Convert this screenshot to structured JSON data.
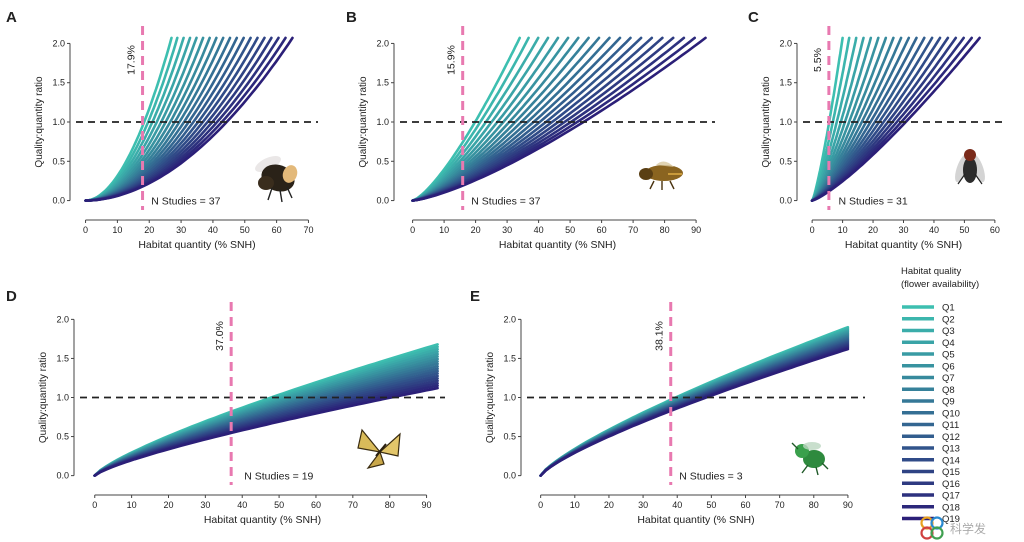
{
  "chart_data": [
    {
      "type": "line",
      "panel_letter": "A",
      "title": "",
      "xlabel": "Habitat quantity (% SNH)",
      "ylabel": "Quality:quantity ratio",
      "xlim": [
        -3,
        73
      ],
      "ylim": [
        -0.12,
        2.12
      ],
      "xticks": [
        0,
        10,
        20,
        30,
        40,
        50,
        60,
        70
      ],
      "yticks": [
        0.0,
        0.5,
        1.0,
        1.5,
        2.0
      ],
      "ytick_labels": [
        "0.0",
        "0.5",
        "1.0",
        "1.5",
        "2.0"
      ],
      "threshold_x": 17.9,
      "threshold_label": "17.9%",
      "reference_y": 1.0,
      "n_studies_label": "N Studies = 37",
      "annotation_at": [
        20,
        0.0
      ],
      "x_end_min": 27,
      "x_end_max": 65,
      "curvature": 1.9,
      "organism": "bumblebee",
      "organism_icon": "bumblebee-icon",
      "grid": false
    },
    {
      "type": "line",
      "panel_letter": "B",
      "title": "",
      "xlabel": "Habitat quantity (% SNH)",
      "ylabel": "Quality:quantity ratio",
      "xlim": [
        -4,
        96
      ],
      "ylim": [
        -0.12,
        2.12
      ],
      "xticks": [
        0,
        10,
        20,
        30,
        40,
        50,
        60,
        70,
        80,
        90
      ],
      "yticks": [
        0.0,
        0.5,
        1.0,
        1.5,
        2.0
      ],
      "ytick_labels": [
        "0.0",
        "0.5",
        "1.0",
        "1.5",
        "2.0"
      ],
      "threshold_x": 15.9,
      "threshold_label": "15.9%",
      "reference_y": 1.0,
      "n_studies_label": "N Studies = 37",
      "annotation_at": [
        18,
        0.0
      ],
      "x_end_min": 34,
      "x_end_max": 93,
      "curvature": 1.35,
      "organism": "solitary bee",
      "organism_icon": "solitary-bee-icon",
      "grid": false
    },
    {
      "type": "line",
      "panel_letter": "C",
      "title": "",
      "xlabel": "Habitat quantity (% SNH)",
      "ylabel": "Quality:quantity ratio",
      "xlim": [
        -3,
        63
      ],
      "ylim": [
        -0.12,
        2.12
      ],
      "xticks": [
        0,
        10,
        20,
        30,
        40,
        50,
        60
      ],
      "yticks": [
        0.0,
        0.5,
        1.0,
        1.5,
        2.0
      ],
      "ytick_labels": [
        "0.0",
        "0.5",
        "1.0",
        "1.5",
        "2.0"
      ],
      "threshold_x": 5.5,
      "threshold_label": "5.5%",
      "reference_y": 1.0,
      "n_studies_label": "N Studies = 31",
      "annotation_at": [
        8,
        0.0
      ],
      "x_end_min": 10,
      "x_end_max": 55,
      "curvature": 1.25,
      "organism": "hoverfly",
      "organism_icon": "hoverfly-icon",
      "grid": false
    },
    {
      "type": "line",
      "panel_letter": "D",
      "title": "",
      "xlabel": "Habitat quantity (% SNH)",
      "ylabel": "Quality:quantity ratio",
      "xlim": [
        -4,
        95
      ],
      "ylim": [
        -0.12,
        2.12
      ],
      "xticks": [
        0,
        10,
        20,
        30,
        40,
        50,
        60,
        70,
        80,
        90
      ],
      "yticks": [
        0.0,
        0.5,
        1.0,
        1.5,
        2.0
      ],
      "ytick_labels": [
        "0.0",
        "0.5",
        "1.0",
        "1.5",
        "2.0"
      ],
      "threshold_x": 37.0,
      "threshold_label": "37.0%",
      "reference_y": 1.0,
      "n_studies_label": "N Studies = 19",
      "annotation_at": [
        40,
        0.0
      ],
      "x_max": 93,
      "y_end_max": 1.68,
      "y_end_min": 1.12,
      "organism": "butterfly",
      "organism_icon": "butterfly-icon",
      "grid": false
    },
    {
      "type": "line",
      "panel_letter": "E",
      "title": "",
      "xlabel": "Habitat quantity (% SNH)",
      "ylabel": "Quality:quantity ratio",
      "xlim": [
        -4,
        95
      ],
      "ylim": [
        -0.12,
        2.12
      ],
      "xticks": [
        0,
        10,
        20,
        30,
        40,
        50,
        60,
        70,
        80,
        90
      ],
      "yticks": [
        0.0,
        0.5,
        1.0,
        1.5,
        2.0
      ],
      "ytick_labels": [
        "0.0",
        "0.5",
        "1.0",
        "1.5",
        "2.0"
      ],
      "threshold_x": 38.1,
      "threshold_label": "38.1%",
      "reference_y": 1.0,
      "n_studies_label": "N Studies = 3",
      "annotation_at": [
        40,
        0.0
      ],
      "x_max": 90,
      "y_end_max": 1.9,
      "y_end_min": 1.62,
      "organism": "green bee",
      "organism_icon": "green-bee-icon",
      "grid": false
    }
  ],
  "legend": {
    "title_line1": "Habitat quality",
    "title_line2": "(flower availability)",
    "entries": [
      "Q1",
      "Q2",
      "Q3",
      "Q4",
      "Q5",
      "Q6",
      "Q7",
      "Q8",
      "Q9",
      "Q10",
      "Q11",
      "Q12",
      "Q13",
      "Q14",
      "Q15",
      "Q16",
      "Q17",
      "Q18",
      "Q19"
    ],
    "color_start": "#3dbfb0",
    "color_end": "#2b1f78"
  },
  "colors": {
    "threshold_line": "#e879b0",
    "reference_line": "#222222",
    "axis": "#444444",
    "text": "#222222"
  },
  "watermark": {
    "icon": "flower-logo-icon",
    "text": "科学发"
  }
}
